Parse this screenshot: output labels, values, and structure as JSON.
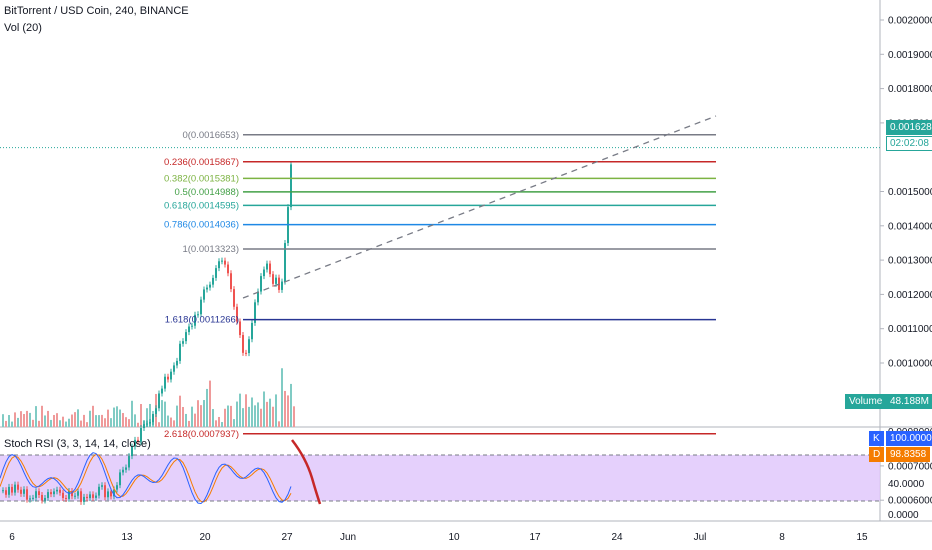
{
  "header": {
    "title": "BitTorrent / USD Coin, 240, BINANCE",
    "volume_indicator": "Vol (20)",
    "stoch_rsi": "Stoch RSI (3, 3, 14, 14, close)"
  },
  "price_axis": {
    "labels": [
      "0.0020000",
      "0.0019000",
      "0.0018000",
      "0.0017000",
      "0.0015000",
      "0.0014000",
      "0.0013000",
      "0.0012000",
      "0.0011000",
      "0.0010000",
      "0.0009000",
      "0.0008000",
      "0.0007000",
      "0.0006000"
    ]
  },
  "stoch_axis": {
    "labels": [
      "40.0000",
      "0.0000"
    ]
  },
  "time_axis": {
    "labels": [
      "6",
      "13",
      "20",
      "27",
      "Jun",
      "10",
      "17",
      "24",
      "Jul",
      "8",
      "15"
    ]
  },
  "current_price": {
    "value": "0.0016280",
    "countdown": "02:02:08",
    "color": "#26a69a"
  },
  "volume_badge": {
    "label": "Volume",
    "value": "48.188M",
    "color": "#26a69a"
  },
  "stoch_badges": {
    "k": {
      "letter": "K",
      "value": "100.0000",
      "color": "#2962ff"
    },
    "d": {
      "letter": "D",
      "value": "98.8358",
      "color": "#f57c00"
    }
  },
  "fib_levels": [
    {
      "label": "0(0.0016653)",
      "color": "#787b86",
      "price": 0.0016653
    },
    {
      "label": "0.236(0.0015867)",
      "color": "#c62828",
      "price": 0.0015867
    },
    {
      "label": "0.382(0.0015381)",
      "color": "#7cb342",
      "price": 0.0015381
    },
    {
      "label": "0.5(0.0014988)",
      "color": "#43a047",
      "price": 0.0014988
    },
    {
      "label": "0.618(0.0014595)",
      "color": "#26a69a",
      "price": 0.0014595
    },
    {
      "label": "0.786(0.0014036)",
      "color": "#1e88e5",
      "price": 0.0014036
    },
    {
      "label": "1(0.0013323)",
      "color": "#787b86",
      "price": 0.0013323
    },
    {
      "label": "1.618(0.0011266)",
      "color": "#283593",
      "price": 0.0011266
    },
    {
      "label": "2.618(0.0007937)",
      "color": "#c62828",
      "price": 0.0007937
    }
  ]
}
